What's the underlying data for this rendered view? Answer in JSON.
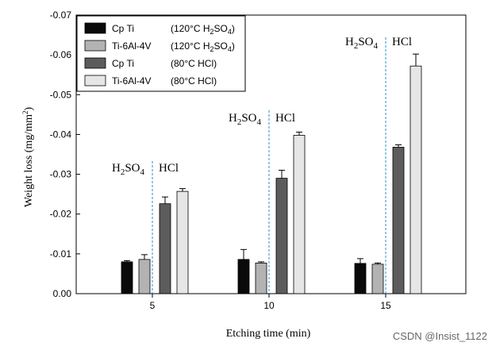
{
  "chart_data": {
    "type": "bar",
    "categories": [
      "5",
      "10",
      "15"
    ],
    "xlabel": "Etching time  (min)",
    "ylabel": "Weight loss (mg/mm",
    "ylabel_sup": "2",
    "ylabel_close": ")",
    "ylim": [
      0.0,
      -0.07
    ],
    "yticks": [
      "0.00",
      "-0.01",
      "-0.02",
      "-0.03",
      "-0.04",
      "-0.05",
      "-0.06",
      "-0.07"
    ],
    "grid": false,
    "legend_position": "top-left",
    "series": [
      {
        "name": "Cp Ti",
        "condition": "(120°C  H",
        "sub": "2",
        "cond_end": "SO",
        "sub2": "4",
        "cond_close": ")",
        "color": "#0a0a0a",
        "values": [
          -0.008,
          -0.0086,
          -0.0076
        ],
        "errors": [
          0.0003,
          0.0025,
          0.0012
        ]
      },
      {
        "name": "Ti-6Al-4V",
        "condition": "(120°C  H",
        "sub": "2",
        "cond_end": "SO",
        "sub2": "4",
        "cond_close": ")",
        "color": "#b3b3b3",
        "values": [
          -0.0086,
          -0.0077,
          -0.0074
        ],
        "errors": [
          0.0012,
          0.0003,
          0.0003
        ]
      },
      {
        "name": "Cp Ti",
        "condition": "(80°C  HCl)",
        "color": "#5c5c5c",
        "values": [
          -0.0226,
          -0.029,
          -0.0368
        ],
        "errors": [
          0.0017,
          0.002,
          0.0006
        ]
      },
      {
        "name": "Ti-6Al-4V",
        "condition": "(80°C  HCl)",
        "color": "#e6e6e6",
        "values": [
          -0.0257,
          -0.0398,
          -0.0572
        ],
        "errors": [
          0.0007,
          0.0008,
          0.003
        ]
      }
    ],
    "annotations": [
      {
        "group": 0,
        "left": "H",
        "left_sub": "2",
        "left_mid": "SO",
        "left_sub2": "4",
        "right": "HCl"
      },
      {
        "group": 1,
        "left": "H",
        "left_sub": "2",
        "left_mid": "SO",
        "left_sub2": "4",
        "right": "HCl"
      },
      {
        "group": 2,
        "left": "H",
        "left_sub": "2",
        "left_mid": "SO",
        "left_sub2": "4",
        "right": "HCl"
      }
    ]
  },
  "watermark": "CSDN @Insist_1122"
}
